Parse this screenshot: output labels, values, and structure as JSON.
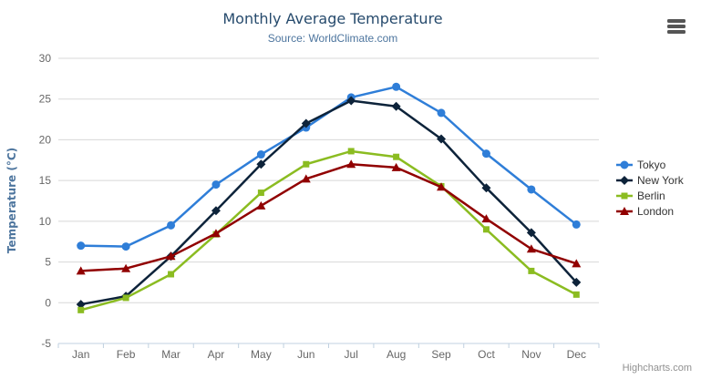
{
  "chart": {
    "title": "Monthly Average Temperature",
    "subtitle": "Source: WorldClimate.com",
    "credits": "Highcharts.com",
    "export_icon": "hamburger-menu"
  },
  "chart_data": {
    "type": "line",
    "title": "Monthly Average Temperature",
    "subtitle": "Source: WorldClimate.com",
    "xlabel": "",
    "ylabel": "Temperature (°C)",
    "categories": [
      "Jan",
      "Feb",
      "Mar",
      "Apr",
      "May",
      "Jun",
      "Jul",
      "Aug",
      "Sep",
      "Oct",
      "Nov",
      "Dec"
    ],
    "ylim": [
      -5,
      30
    ],
    "yticks": [
      -5,
      0,
      5,
      10,
      15,
      20,
      25,
      30
    ],
    "grid": true,
    "legend_position": "right",
    "series": [
      {
        "name": "Tokyo",
        "color": "#2f7ed8",
        "marker": "circle",
        "values": [
          7.0,
          6.9,
          9.5,
          14.5,
          18.2,
          21.5,
          25.2,
          26.5,
          23.3,
          18.3,
          13.9,
          9.6
        ]
      },
      {
        "name": "New York",
        "color": "#0d233a",
        "marker": "diamond",
        "values": [
          -0.2,
          0.8,
          5.7,
          11.3,
          17.0,
          22.0,
          24.8,
          24.1,
          20.1,
          14.1,
          8.6,
          2.5
        ]
      },
      {
        "name": "Berlin",
        "color": "#8bbc21",
        "marker": "square",
        "values": [
          -0.9,
          0.6,
          3.5,
          8.4,
          13.5,
          17.0,
          18.6,
          17.9,
          14.3,
          9.0,
          3.9,
          1.0
        ]
      },
      {
        "name": "London",
        "color": "#910000",
        "marker": "triangle",
        "values": [
          3.9,
          4.2,
          5.7,
          8.5,
          11.9,
          15.2,
          17.0,
          16.6,
          14.2,
          10.3,
          6.6,
          4.8
        ]
      }
    ],
    "style": {
      "grid_color": "#d8d8d8",
      "axis_line_color": "#c0d0e0",
      "label_color": "#666666",
      "title_color": "#274b6d",
      "subtitle_color": "#4d759e",
      "axis_title_color": "#4d759e"
    }
  }
}
